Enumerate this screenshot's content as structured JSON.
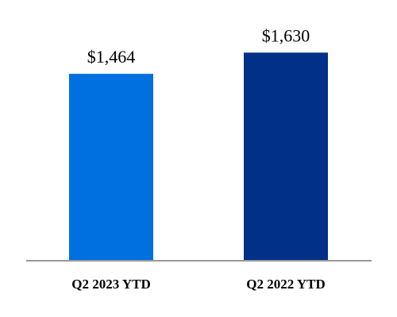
{
  "chart_data": {
    "type": "bar",
    "categories": [
      "Q2 2023 YTD",
      "Q2 2022 YTD"
    ],
    "values": [
      1464,
      1630
    ],
    "value_labels": [
      "$1,464",
      "$1,630"
    ],
    "colors": [
      "#0070e0",
      "#003087"
    ],
    "axis_color": "#999999",
    "ylim": [
      0,
      1800
    ],
    "title": "",
    "xlabel": "",
    "ylabel": "",
    "grid": false,
    "legend": "none"
  }
}
